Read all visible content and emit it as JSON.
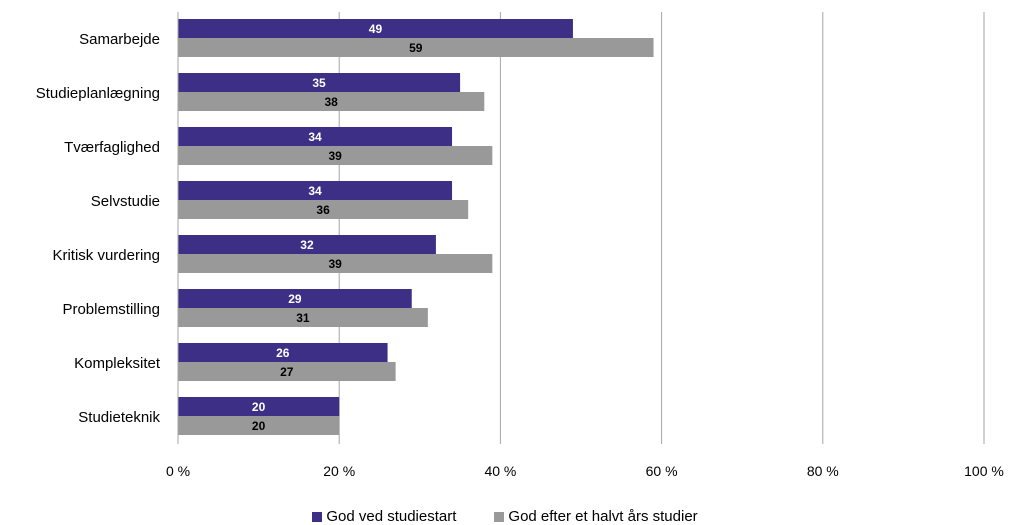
{
  "chart_data": {
    "type": "bar",
    "orientation": "horizontal",
    "categories": [
      "Samarbejde",
      "Studieplanlægning",
      "Tværfaglighed",
      "Selvstudie",
      "Kritisk vurdering",
      "Problemstilling",
      "Kompleksitet",
      "Studieteknik"
    ],
    "series": [
      {
        "name": "God ved studiestart",
        "values": [
          49,
          35,
          34,
          34,
          32,
          29,
          26,
          20
        ],
        "color": "#3d2f85",
        "label_color": "#ffffff"
      },
      {
        "name": "God efter et halvt års studier",
        "values": [
          59,
          38,
          39,
          36,
          39,
          31,
          27,
          20
        ],
        "color": "#999999",
        "label_color": "#000000"
      }
    ],
    "xlim": [
      0,
      100
    ],
    "x_ticks": [
      "0 %",
      "20 %",
      "40 %",
      "60 %",
      "80 %",
      "100 %"
    ],
    "grid": true,
    "legend_position": "bottom"
  }
}
